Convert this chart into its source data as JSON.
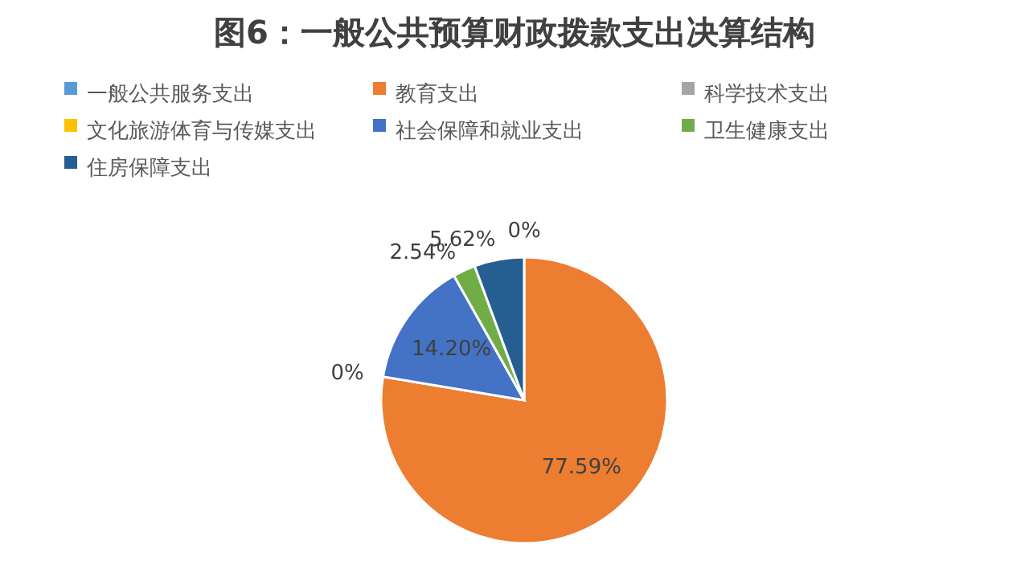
{
  "chart_data": {
    "type": "pie",
    "title": "图6：一般公共预算财政拨款支出决算结构",
    "categories": [
      "一般公共服务支出",
      "教育支出",
      "科学技术支出",
      "文化旅游体育与传媒支出",
      "社会保障和就业支出",
      "卫生健康支出",
      "住房保障支出"
    ],
    "values": [
      0,
      77.59,
      0,
      0,
      14.2,
      2.54,
      5.62
    ],
    "value_labels": [
      "0%",
      "77.59%",
      "0%",
      null,
      "14.20%",
      "2.54%",
      "5.62%"
    ],
    "colors": [
      "#5b9bd5",
      "#ed7d31",
      "#a5a5a5",
      "#ffc000",
      "#4472c4",
      "#70ad47",
      "#255e91"
    ],
    "legend": "top"
  }
}
